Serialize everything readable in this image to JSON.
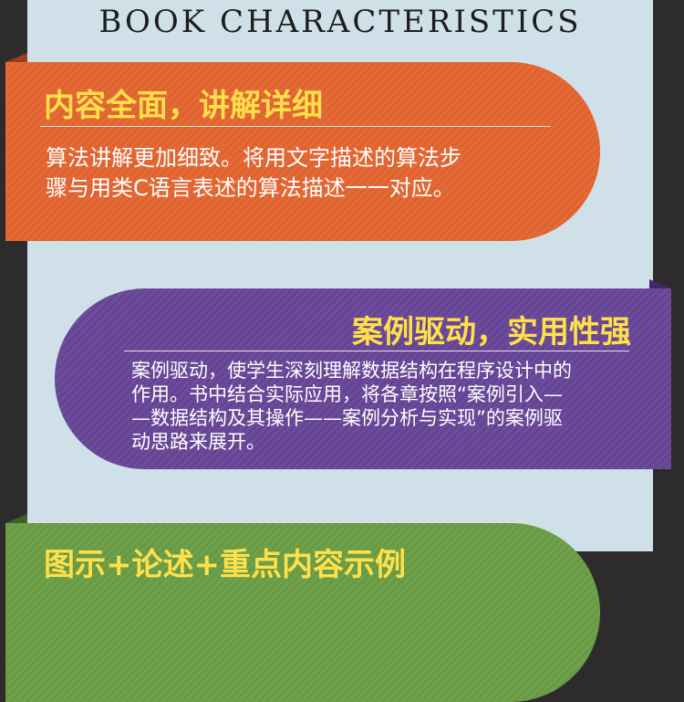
{
  "heading": "BOOK CHARACTERISTICS",
  "colors": {
    "panel": "#cfe0e9",
    "orange": "#e46a36",
    "purple": "#6d4c9b",
    "green": "#6fa04a",
    "title_yellow": "#ffe04a"
  },
  "cards": [
    {
      "title": "内容全面，讲解详细",
      "lines": [
        "算法讲解更加细致。将用文字描述的算法步",
        "骤与用类C语言表述的算法描述一一对应。"
      ]
    },
    {
      "title": "案例驱动，实用性强",
      "lines": [
        "案例驱动，使学生深刻理解数据结构在程序设计中的",
        "作用。书中结合实际应用，将各章按照“案例引入—",
        "—数据结构及其操作——案例分析与实现”的案例驱",
        "动思路来展开。"
      ]
    },
    {
      "title": "图示+论述+重点内容示例"
    }
  ]
}
